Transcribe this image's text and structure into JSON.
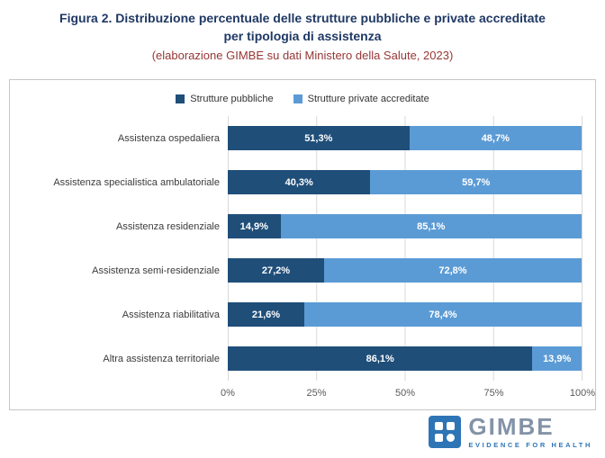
{
  "title": {
    "line1": "Figura 2. Distribuzione percentuale delle strutture pubbliche e private accreditate",
    "line2": "per tipologia di assistenza",
    "subtitle": "(elaborazione GIMBE su dati Ministero della Salute, 2023)"
  },
  "chart_data": {
    "type": "bar",
    "orientation": "horizontal",
    "stacked": true,
    "title": "Distribuzione percentuale delle strutture pubbliche e private accreditate per tipologia di assistenza",
    "categories": [
      "Assistenza ospedaliera",
      "Assistenza specialistica ambulatoriale",
      "Assistenza residenziale",
      "Assistenza semi-residenziale",
      "Assistenza riabilitativa",
      "Altra assistenza territoriale"
    ],
    "series": [
      {
        "name": "Strutture pubbliche",
        "color": "#1F4E79",
        "values": [
          51.3,
          40.3,
          14.9,
          27.2,
          21.6,
          86.1
        ],
        "labels": [
          "51,3%",
          "40,3%",
          "14,9%",
          "27,2%",
          "21,6%",
          "86,1%"
        ]
      },
      {
        "name": "Strutture private accreditate",
        "color": "#5B9BD5",
        "values": [
          48.7,
          59.7,
          85.1,
          72.8,
          78.4,
          13.9
        ],
        "labels": [
          "48,7%",
          "59,7%",
          "85,1%",
          "72,8%",
          "78,4%",
          "13,9%"
        ]
      }
    ],
    "x_ticks": [
      "0%",
      "25%",
      "50%",
      "75%",
      "100%"
    ],
    "xlim": [
      0,
      100
    ],
    "legend_position": "top",
    "grid": true
  },
  "logo": {
    "name": "GIMBE",
    "tagline": "EVIDENCE FOR HEALTH"
  },
  "colors": {
    "title": "#1F3864",
    "subtitle": "#953735",
    "public": "#1F4E79",
    "private": "#5B9BD5",
    "gridline": "#D9D9D9",
    "frame_border": "#C6C6C6",
    "logo_blue": "#2E75B6",
    "logo_gray": "#8393A7"
  }
}
